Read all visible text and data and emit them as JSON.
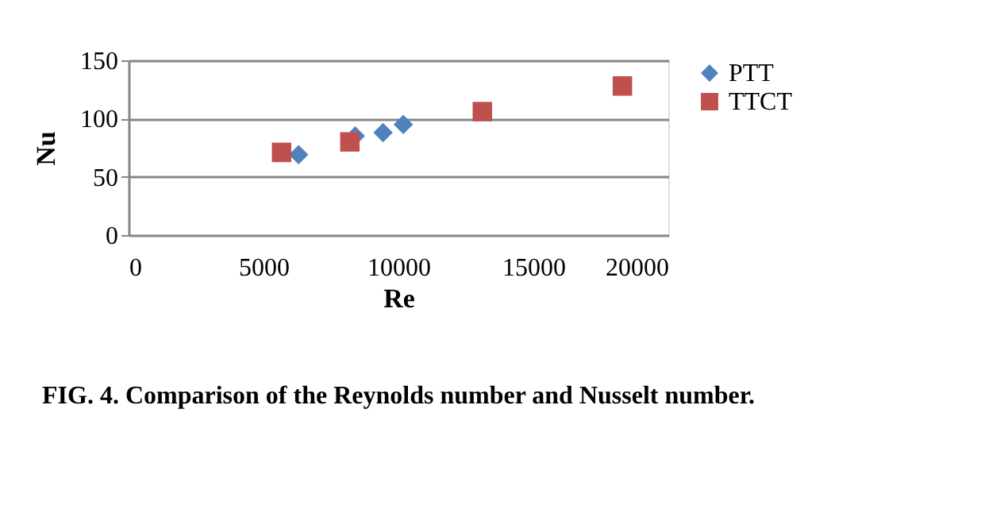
{
  "chart_data": {
    "type": "scatter",
    "xlabel": "Re",
    "ylabel": "Nu",
    "xlim": [
      0,
      20000
    ],
    "xticks": [
      0,
      5000,
      10000,
      15000,
      20000
    ],
    "ylim": [
      0,
      150
    ],
    "yticks": [
      0,
      50,
      100,
      150
    ],
    "grid": "y",
    "legend": "right",
    "series": [
      {
        "name": "PTT",
        "color": "#4f81bd",
        "marker": "diamond",
        "x": [
          6300,
          8400,
          9430,
          10180
        ],
        "values": [
          69,
          85,
          88,
          95
        ]
      },
      {
        "name": "TTCT",
        "color": "#c0504d",
        "marker": "square",
        "x": [
          5670,
          8200,
          13110,
          18300
        ],
        "values": [
          71,
          80,
          106,
          128
        ]
      }
    ],
    "annotations": [
      "FIG. 4. Comparison of the Reynolds number and Nusselt number."
    ]
  }
}
